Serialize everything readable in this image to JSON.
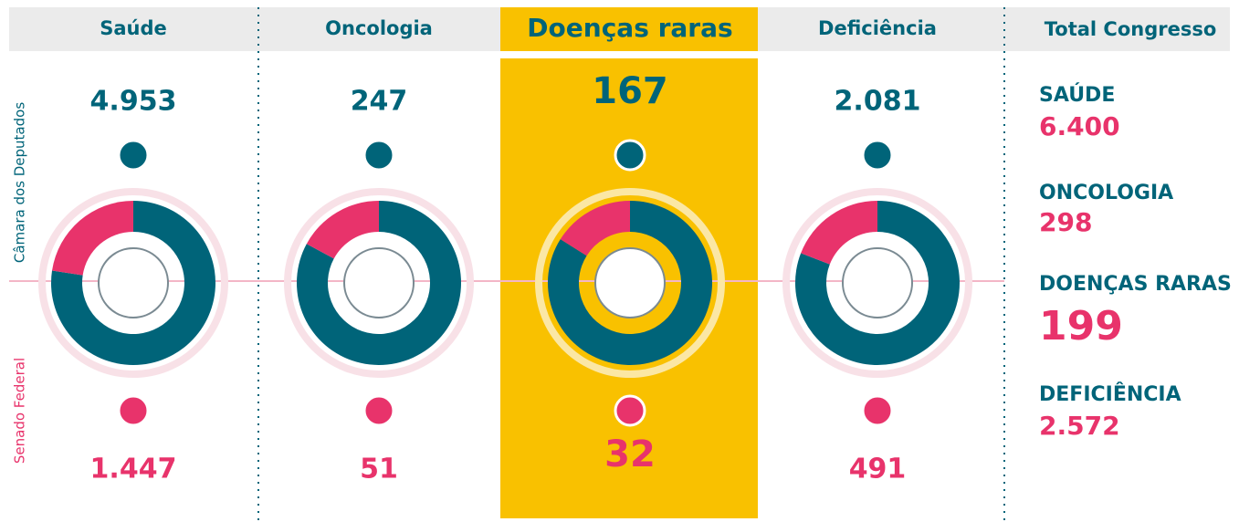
{
  "row_labels": {
    "top": "Câmara dos Deputados",
    "bottom": "Senado Federal"
  },
  "chart_data": [
    {
      "type": "donut",
      "title": "Saúde",
      "values": [
        4953,
        1447
      ],
      "value_labels": [
        "4.953",
        "1.447"
      ],
      "colors": [
        "#006479",
        "#e8336b"
      ],
      "highlight": false
    },
    {
      "type": "donut",
      "title": "Oncologia",
      "values": [
        247,
        51
      ],
      "value_labels": [
        "247",
        "51"
      ],
      "colors": [
        "#006479",
        "#e8336b"
      ],
      "highlight": false
    },
    {
      "type": "donut",
      "title": "Doenças raras",
      "values": [
        167,
        32
      ],
      "value_labels": [
        "167",
        "32"
      ],
      "colors": [
        "#006479",
        "#e8336b"
      ],
      "highlight": true
    },
    {
      "type": "donut",
      "title": "Deficiência",
      "values": [
        2081,
        491
      ],
      "value_labels": [
        "2.081",
        "491"
      ],
      "colors": [
        "#006479",
        "#e8336b"
      ],
      "highlight": false
    }
  ],
  "totals": {
    "title": "Total Congresso",
    "items": [
      {
        "label": "SAÚDE",
        "value": "6.400"
      },
      {
        "label": "ONCOLOGIA",
        "value": "298"
      },
      {
        "label": "DOENÇAS RARAS",
        "value": "199"
      },
      {
        "label": "DEFICIÊNCIA",
        "value": "2.572"
      }
    ]
  }
}
